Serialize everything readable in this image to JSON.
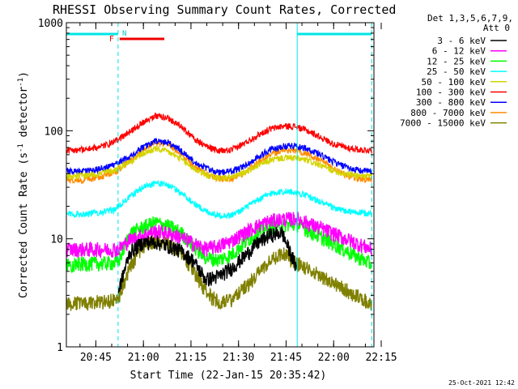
{
  "chart_data": {
    "type": "line",
    "title": "RHESSI Observing Summary Count Rates, Corrected",
    "xlabel": "Start Time (22-Jan-15 20:35:42)",
    "ylabel": "Corrected Count Rate (s⁻¹ detector⁻¹)",
    "ylabel_parts": {
      "main": "Corrected Count Rate (s",
      "exp1": "-1",
      "mid": " detector",
      "exp2": "-1",
      "end": ")"
    },
    "y_scale": "log",
    "ylim": [
      1,
      1000
    ],
    "xlim_minutes": [
      0,
      97
    ],
    "x_ticks": [
      {
        "minute": 9.3,
        "label": "20:45"
      },
      {
        "minute": 24.3,
        "label": "21:00"
      },
      {
        "minute": 39.3,
        "label": "21:15"
      },
      {
        "minute": 54.3,
        "label": "21:30"
      },
      {
        "minute": 69.3,
        "label": "21:45"
      },
      {
        "minute": 84.3,
        "label": "22:00"
      },
      {
        "minute": 99.3,
        "label": "22:15"
      }
    ],
    "y_ticks": [
      {
        "value": 1,
        "label": "1"
      },
      {
        "value": 10,
        "label": "10"
      },
      {
        "value": 100,
        "label": "100"
      },
      {
        "value": 1000,
        "label": "1000"
      }
    ],
    "grid": false,
    "legend_position": "right",
    "legend_header": [
      "Det 1,3,5,6,7,9,",
      "Att 0"
    ],
    "timestamp": "25-Oct-2021 12:42",
    "night_boundaries_minutes": [
      16.3,
      72.8
    ],
    "night_end_minute": 96.3,
    "flags": {
      "N_label": "N",
      "N_minute": 17.6,
      "F_label": "F",
      "F_interval_minutes": [
        16.8,
        30.9
      ],
      "day_intervals_minutes": [
        [
          0,
          16.3
        ],
        [
          72.8,
          96.3
        ]
      ]
    },
    "series": [
      {
        "name": "3 - 6 keV",
        "color": "#000000",
        "x": [
          16.3,
          20,
          24,
          28,
          32,
          36,
          40,
          44,
          48,
          52,
          56,
          60,
          64,
          68,
          72.8
        ],
        "y": [
          3.2,
          7.5,
          9.2,
          9.4,
          8.6,
          7.8,
          6.3,
          4.2,
          4.5,
          5.3,
          6.8,
          9,
          10.8,
          11.5,
          5.2
        ]
      },
      {
        "name": "6 - 12 keV",
        "color": "#ff00ff",
        "x": [
          0,
          16.3,
          20,
          24,
          28,
          32,
          36,
          40,
          44,
          48,
          52,
          56,
          60,
          64,
          68,
          72.8,
          96.3
        ],
        "y": [
          8,
          8,
          9.8,
          10.8,
          11.8,
          11.3,
          10.4,
          9.1,
          8.1,
          8.6,
          9.6,
          11.3,
          13.1,
          14.6,
          15.2,
          15.4,
          8
        ]
      },
      {
        "name": "12 - 25 keV",
        "color": "#00ff00",
        "x": [
          0,
          16.3,
          20,
          24,
          28,
          32,
          36,
          40,
          44,
          48,
          52,
          56,
          60,
          64,
          68,
          72.8,
          96.3
        ],
        "y": [
          5.8,
          6,
          11.2,
          12.8,
          14.2,
          13.2,
          11.6,
          8.6,
          6.7,
          6.4,
          7.1,
          9.1,
          11.3,
          12.9,
          13.6,
          13.6,
          5.8
        ]
      },
      {
        "name": "25 - 50 keV",
        "color": "#00ffff",
        "x": [
          0,
          5,
          10,
          15,
          20,
          24,
          28,
          32,
          36,
          40,
          44,
          48,
          52,
          56,
          60,
          64,
          68,
          72,
          76,
          80,
          84,
          88,
          92,
          96.3
        ],
        "y": [
          17,
          17,
          17.5,
          18.5,
          24.5,
          30,
          33,
          31.5,
          27,
          21.5,
          18,
          16.5,
          16.5,
          19,
          22.5,
          26,
          27.5,
          27,
          25,
          22,
          19.5,
          18,
          17.5,
          17
        ]
      },
      {
        "name": "50 - 100 keV",
        "color": "#d4d400",
        "x": [
          0,
          5,
          10,
          15,
          20,
          24,
          28,
          32,
          36,
          40,
          44,
          48,
          52,
          56,
          60,
          64,
          68,
          72,
          76,
          80,
          84,
          88,
          92,
          96.3
        ],
        "y": [
          38,
          38.5,
          40,
          43,
          52,
          61,
          68,
          64,
          55,
          45,
          39,
          36.5,
          37,
          41,
          47,
          53,
          56,
          56,
          53,
          48,
          43,
          40,
          38.5,
          38
        ]
      },
      {
        "name": "100 - 300 keV",
        "color": "#ff0000",
        "x": [
          0,
          5,
          10,
          15,
          20,
          24,
          28,
          32,
          36,
          40,
          44,
          48,
          52,
          56,
          60,
          64,
          68,
          72,
          76,
          80,
          84,
          88,
          92,
          96.3
        ],
        "y": [
          66,
          67,
          70,
          78,
          98,
          120,
          138,
          132,
          110,
          86,
          72,
          65,
          66,
          76,
          90,
          103,
          110,
          110,
          100,
          88,
          76,
          70,
          67,
          66
        ]
      },
      {
        "name": "300 - 800 keV",
        "color": "#0000ff",
        "x": [
          0,
          5,
          10,
          15,
          20,
          24,
          28,
          32,
          36,
          40,
          44,
          48,
          52,
          56,
          60,
          64,
          68,
          72,
          76,
          80,
          84,
          88,
          92,
          96.3
        ],
        "y": [
          42,
          42,
          44,
          48,
          58,
          70,
          80,
          78,
          66,
          53,
          45,
          41,
          42,
          47,
          56,
          66,
          72,
          73,
          68,
          60,
          52,
          46,
          43,
          42
        ]
      },
      {
        "name": "800 - 7000 keV",
        "color": "#ff8c00",
        "x": [
          0,
          5,
          10,
          15,
          20,
          24,
          28,
          32,
          36,
          40,
          44,
          48,
          52,
          56,
          60,
          64,
          68,
          72,
          76,
          80,
          84,
          88,
          92,
          96.3
        ],
        "y": [
          35,
          35,
          37,
          41,
          52,
          66,
          78,
          75,
          62,
          48,
          40,
          36,
          36,
          41,
          50,
          60,
          66,
          66,
          61,
          53,
          45,
          39,
          36,
          35
        ]
      },
      {
        "name": "7000 - 15000 keV",
        "color": "#808000",
        "x": [
          0,
          16.3,
          20,
          24,
          28,
          32,
          36,
          40,
          44,
          48,
          52,
          56,
          60,
          64,
          68,
          72.8,
          96.3
        ],
        "y": [
          2.5,
          2.7,
          5.5,
          8.2,
          9.8,
          9.2,
          7.6,
          5.2,
          3.2,
          2.6,
          2.7,
          3.5,
          4.6,
          6.2,
          7.5,
          6,
          2.5
        ]
      }
    ]
  }
}
